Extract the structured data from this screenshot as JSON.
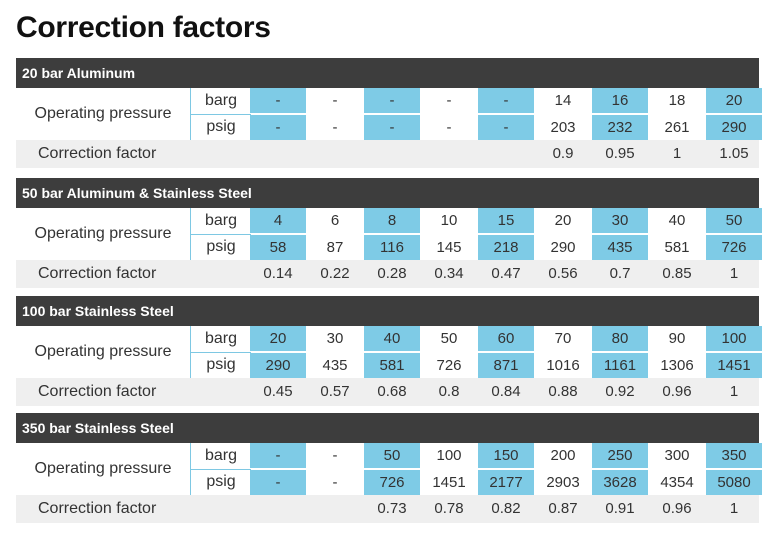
{
  "title": "Correction factors",
  "labels": {
    "operating_pressure": "Operating pressure",
    "correction_factor": "Correction factor",
    "barg": "barg",
    "psig": "psig"
  },
  "sections": [
    {
      "name": "20 bar Aluminum",
      "barg": [
        "-",
        "-",
        "-",
        "-",
        "-",
        "14",
        "16",
        "18",
        "20"
      ],
      "psig": [
        "-",
        "-",
        "-",
        "-",
        "-",
        "203",
        "232",
        "261",
        "290"
      ],
      "cf": [
        "",
        "",
        "",
        "",
        "",
        "0.9",
        "0.95",
        "1",
        "1.05"
      ]
    },
    {
      "name": "50 bar Aluminum & Stainless Steel",
      "barg": [
        "4",
        "6",
        "8",
        "10",
        "15",
        "20",
        "30",
        "40",
        "50"
      ],
      "psig": [
        "58",
        "87",
        "116",
        "145",
        "218",
        "290",
        "435",
        "581",
        "726"
      ],
      "cf": [
        "0.14",
        "0.22",
        "0.28",
        "0.34",
        "0.47",
        "0.56",
        "0.7",
        "0.85",
        "1"
      ]
    },
    {
      "name": "100 bar Stainless Steel",
      "barg": [
        "20",
        "30",
        "40",
        "50",
        "60",
        "70",
        "80",
        "90",
        "100"
      ],
      "psig": [
        "290",
        "435",
        "581",
        "726",
        "871",
        "1016",
        "1161",
        "1306",
        "1451"
      ],
      "cf": [
        "0.45",
        "0.57",
        "0.68",
        "0.8",
        "0.84",
        "0.88",
        "0.92",
        "0.96",
        "1"
      ]
    },
    {
      "name": "350 bar Stainless Steel",
      "barg": [
        "-",
        "-",
        "50",
        "100",
        "150",
        "200",
        "250",
        "300",
        "350"
      ],
      "psig": [
        "-",
        "-",
        "726",
        "1451",
        "2177",
        "2903",
        "3628",
        "4354",
        "5080"
      ],
      "cf": [
        "",
        "",
        "0.73",
        "0.78",
        "0.82",
        "0.87",
        "0.91",
        "0.96",
        "1"
      ]
    }
  ],
  "colors": {
    "highlight": "#7ecbe6",
    "header": "#3d3d3d",
    "factor_row": "#efefef"
  }
}
